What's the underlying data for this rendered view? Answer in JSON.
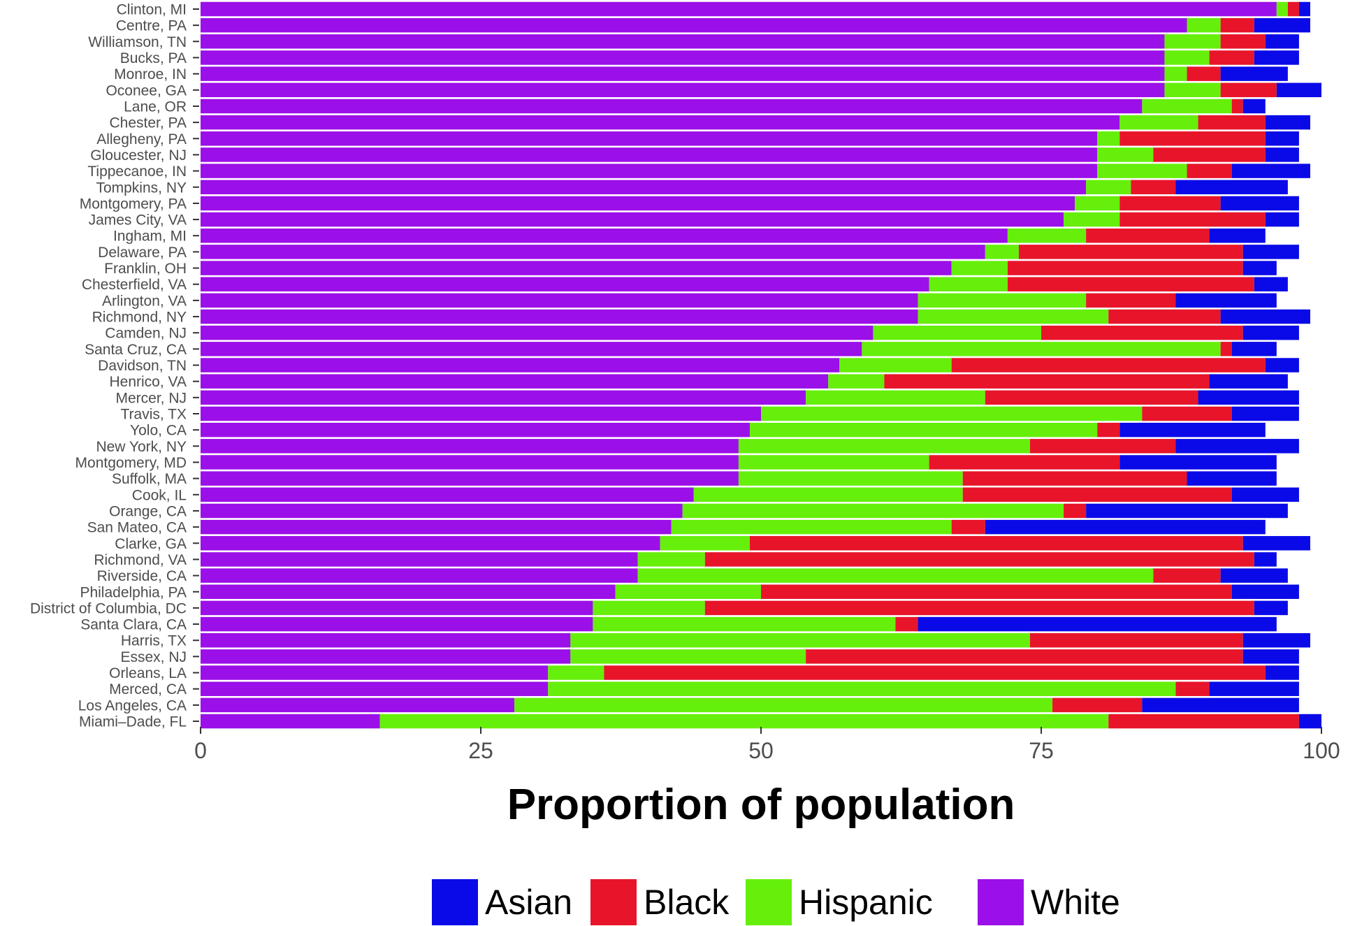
{
  "chart_data": {
    "type": "bar",
    "orientation": "horizontal",
    "stacked": true,
    "title": "",
    "xlabel": "Proportion of population",
    "ylabel": "",
    "xlim": [
      0,
      100
    ],
    "x_ticks": [
      "0",
      "25",
      "50",
      "75",
      "100"
    ],
    "legend_position": "bottom",
    "grid": false,
    "categories": [
      "Clinton, MI",
      "Centre, PA",
      "Williamson, TN",
      "Bucks, PA",
      "Monroe, IN",
      "Oconee, GA",
      "Lane, OR",
      "Chester, PA",
      "Allegheny, PA",
      "Gloucester, NJ",
      "Tippecanoe, IN",
      "Tompkins, NY",
      "Montgomery, PA",
      "James City, VA",
      "Ingham, MI",
      "Delaware, PA",
      "Franklin, OH",
      "Chesterfield, VA",
      "Arlington, VA",
      "Richmond, NY",
      "Camden, NJ",
      "Santa Cruz, CA",
      "Davidson, TN",
      "Henrico, VA",
      "Mercer, NJ",
      "Travis, TX",
      "Yolo, CA",
      "New York, NY",
      "Montgomery, MD",
      "Suffolk, MA",
      "Cook, IL",
      "Orange, CA",
      "San Mateo, CA",
      "Clarke, GA",
      "Richmond, VA",
      "Riverside, CA",
      "Philadelphia, PA",
      "District of Columbia, DC",
      "Santa Clara, CA",
      "Harris, TX",
      "Essex, NJ",
      "Orleans, LA",
      "Merced, CA",
      "Los Angeles, CA",
      "Miami–Dade, FL"
    ],
    "series": [
      {
        "name": "White",
        "color": "#9b0fe8",
        "values": [
          96,
          88,
          86,
          86,
          86,
          86,
          84,
          82,
          80,
          80,
          80,
          79,
          78,
          77,
          72,
          70,
          67,
          65,
          64,
          64,
          60,
          59,
          57,
          56,
          54,
          50,
          49,
          48,
          48,
          48,
          44,
          43,
          42,
          41,
          39,
          39,
          37,
          35,
          35,
          33,
          33,
          31,
          31,
          28,
          16
        ]
      },
      {
        "name": "Hispanic",
        "color": "#66ef0a",
        "values": [
          1,
          3,
          5,
          4,
          2,
          5,
          8,
          7,
          2,
          5,
          8,
          4,
          4,
          5,
          7,
          3,
          5,
          7,
          15,
          17,
          15,
          32,
          10,
          5,
          16,
          34,
          31,
          26,
          17,
          20,
          24,
          34,
          25,
          8,
          6,
          46,
          13,
          10,
          27,
          41,
          21,
          5,
          56,
          48,
          65
        ]
      },
      {
        "name": "Black",
        "color": "#e8142a",
        "values": [
          1,
          3,
          4,
          4,
          3,
          5,
          1,
          6,
          13,
          10,
          4,
          4,
          9,
          13,
          11,
          20,
          21,
          22,
          8,
          10,
          18,
          1,
          28,
          29,
          19,
          8,
          2,
          13,
          17,
          20,
          24,
          2,
          3,
          44,
          49,
          6,
          42,
          49,
          2,
          19,
          39,
          59,
          3,
          8,
          17
        ]
      },
      {
        "name": "Asian",
        "color": "#0a0ae8",
        "values": [
          1,
          5,
          3,
          4,
          6,
          4,
          2,
          4,
          3,
          3,
          7,
          10,
          7,
          3,
          5,
          5,
          3,
          3,
          9,
          8,
          5,
          4,
          3,
          7,
          9,
          6,
          13,
          11,
          14,
          8,
          6,
          18,
          25,
          6,
          2,
          6,
          6,
          3,
          32,
          6,
          5,
          3,
          8,
          14,
          2
        ]
      }
    ],
    "legend_order": [
      "Asian",
      "Black",
      "Hispanic",
      "White"
    ]
  }
}
